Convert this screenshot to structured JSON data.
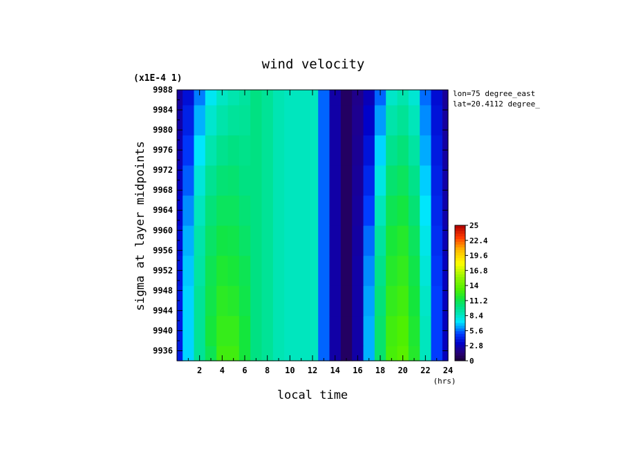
{
  "chart_data": {
    "type": "heatmap",
    "title": "wind velocity",
    "xlabel": "local time",
    "ylabel": "sigma at layer midpoints",
    "x_unit": "(hrs)",
    "y_scale_note": "(x1E-4 1)",
    "annotations": [
      "lon=75 degree_east",
      "lat=20.4112 degree_"
    ],
    "xlim": [
      0,
      24
    ],
    "ylim": [
      9988,
      9934
    ],
    "x_ticks": [
      2,
      4,
      6,
      8,
      10,
      12,
      14,
      16,
      18,
      20,
      22,
      24
    ],
    "y_ticks": [
      9936,
      9940,
      9944,
      9948,
      9952,
      9956,
      9960,
      9964,
      9968,
      9972,
      9976,
      9980,
      9984,
      9988
    ],
    "x": [
      0,
      1,
      2,
      3,
      4,
      5,
      6,
      7,
      8,
      9,
      10,
      11,
      12,
      13,
      14,
      15,
      16,
      17,
      18,
      19,
      20,
      21,
      22,
      23,
      24
    ],
    "y": [
      9934,
      9940,
      9946,
      9952,
      9958,
      9964,
      9970,
      9976,
      9982,
      9988
    ],
    "values": [
      [
        4.0,
        7.0,
        9.5,
        11.0,
        12.8,
        12.8,
        11.5,
        10.0,
        9.5,
        8.8,
        8.5,
        8.5,
        8.5,
        5.5,
        2.5,
        1.0,
        2.5,
        6.5,
        10.5,
        13.0,
        13.5,
        12.0,
        8.5,
        5.0,
        3.0
      ],
      [
        4.0,
        7.0,
        9.5,
        11.5,
        12.5,
        12.5,
        11.5,
        10.0,
        9.5,
        8.8,
        8.5,
        8.5,
        8.5,
        5.5,
        2.5,
        1.0,
        2.5,
        6.5,
        10.5,
        12.8,
        13.2,
        11.8,
        8.5,
        5.0,
        3.0
      ],
      [
        4.0,
        7.0,
        9.5,
        11.2,
        12.2,
        12.0,
        11.2,
        10.0,
        9.5,
        8.8,
        8.5,
        8.5,
        8.5,
        5.5,
        2.5,
        1.0,
        2.5,
        6.3,
        10.2,
        12.4,
        12.8,
        11.5,
        8.3,
        5.0,
        3.0
      ],
      [
        3.8,
        6.8,
        9.2,
        11.0,
        11.8,
        11.6,
        11.0,
        10.0,
        9.5,
        8.8,
        8.5,
        8.5,
        8.5,
        5.5,
        2.5,
        1.0,
        2.5,
        6.0,
        9.8,
        12.0,
        12.4,
        11.2,
        8.0,
        4.8,
        3.0
      ],
      [
        3.6,
        6.5,
        9.0,
        10.6,
        11.3,
        11.2,
        10.6,
        10.0,
        9.5,
        8.8,
        8.5,
        8.5,
        8.5,
        5.5,
        2.5,
        1.0,
        2.4,
        5.6,
        9.3,
        11.6,
        12.0,
        10.8,
        7.7,
        4.6,
        2.8
      ],
      [
        3.3,
        6.0,
        8.5,
        10.2,
        10.8,
        10.8,
        10.3,
        10.0,
        9.5,
        8.8,
        8.5,
        8.5,
        8.5,
        5.5,
        2.5,
        1.0,
        2.3,
        5.0,
        8.6,
        11.0,
        11.4,
        10.3,
        7.3,
        4.4,
        2.6
      ],
      [
        3.0,
        5.4,
        8.0,
        9.6,
        10.3,
        10.4,
        10.0,
        10.0,
        9.5,
        8.8,
        8.5,
        8.5,
        8.5,
        5.5,
        2.5,
        1.0,
        2.2,
        4.4,
        7.8,
        10.4,
        10.8,
        9.8,
        6.9,
        4.2,
        2.5
      ],
      [
        2.7,
        4.8,
        7.3,
        8.9,
        9.7,
        10.0,
        9.8,
        10.0,
        9.5,
        8.8,
        8.5,
        8.5,
        8.5,
        5.5,
        2.5,
        1.0,
        2.1,
        3.8,
        7.0,
        9.7,
        10.2,
        9.2,
        6.4,
        4.0,
        2.4
      ],
      [
        2.5,
        4.2,
        6.5,
        8.2,
        9.0,
        9.4,
        9.5,
        10.0,
        9.5,
        8.8,
        8.5,
        8.5,
        8.5,
        5.5,
        2.5,
        1.0,
        2.0,
        3.3,
        6.2,
        9.0,
        9.5,
        8.6,
        6.0,
        3.8,
        2.3
      ],
      [
        2.3,
        3.7,
        5.8,
        7.5,
        8.4,
        8.9,
        9.3,
        10.0,
        9.5,
        8.8,
        8.5,
        8.5,
        8.5,
        5.5,
        2.5,
        1.0,
        1.9,
        2.9,
        5.5,
        8.3,
        8.9,
        8.1,
        5.6,
        3.6,
        2.2
      ]
    ],
    "colorbar": {
      "min": 0,
      "max": 25,
      "tick_labels": [
        "0",
        "2.8",
        "5.6",
        "8.4",
        "11.2",
        "14",
        "16.8",
        "19.6",
        "22.4",
        "25"
      ]
    }
  }
}
